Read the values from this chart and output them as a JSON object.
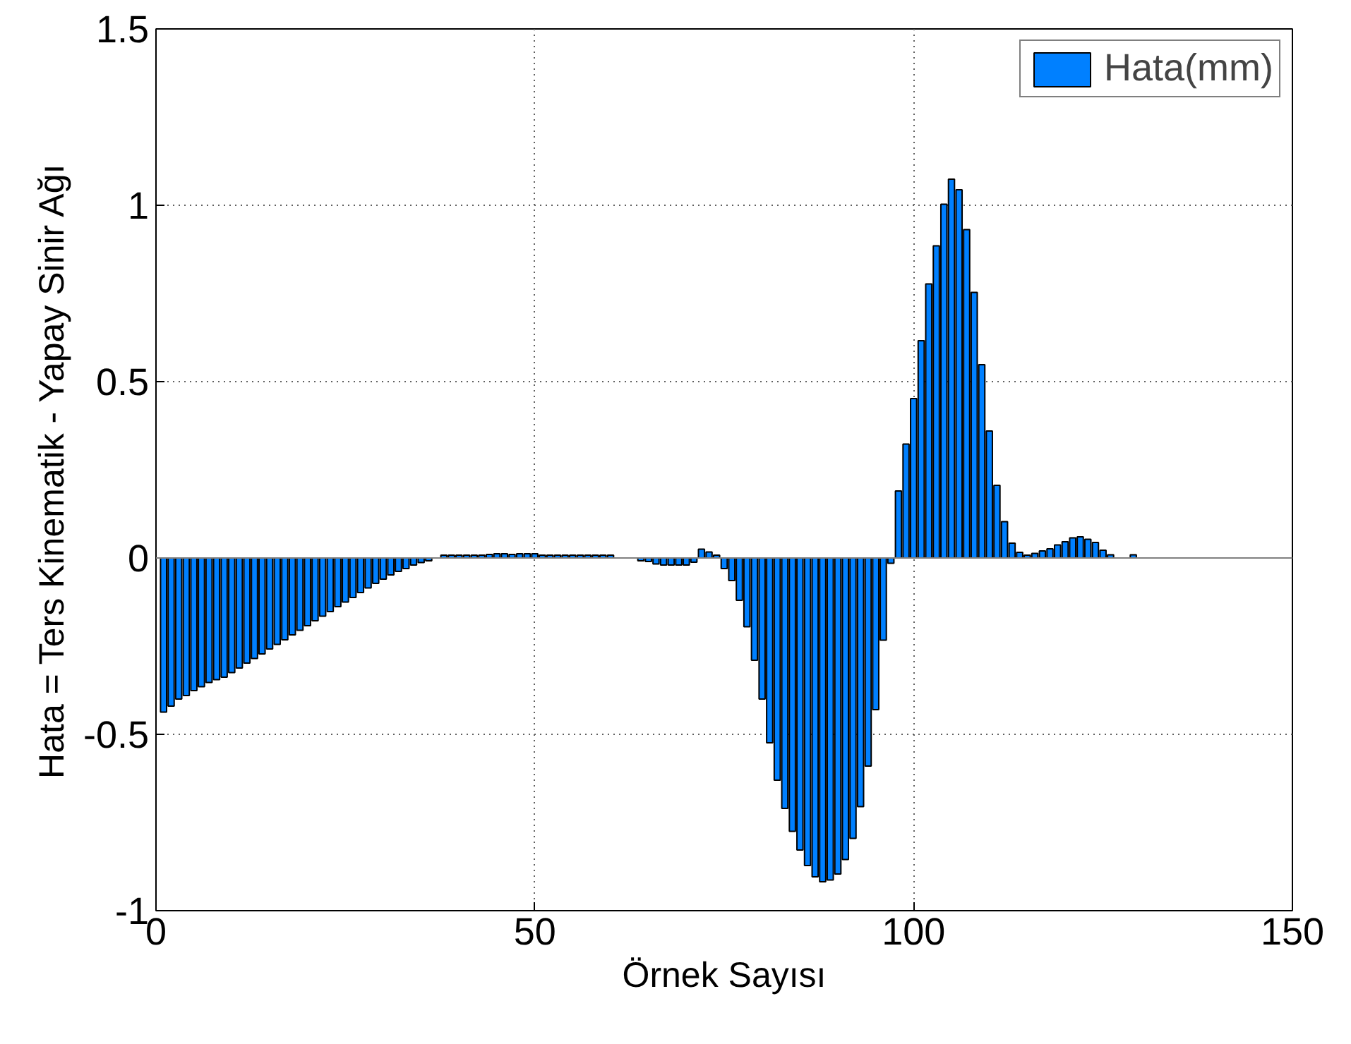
{
  "chart_data": {
    "type": "bar",
    "xlabel": "Örnek Sayısı",
    "ylabel": "Hata = Ters Kinematik - Yapay Sinir Ağı",
    "x": [
      1,
      2,
      3,
      4,
      5,
      6,
      7,
      8,
      9,
      10,
      11,
      12,
      13,
      14,
      15,
      16,
      17,
      18,
      19,
      20,
      21,
      22,
      23,
      24,
      25,
      26,
      27,
      28,
      29,
      30,
      31,
      32,
      33,
      34,
      35,
      36,
      37,
      38,
      39,
      40,
      41,
      42,
      43,
      44,
      45,
      46,
      47,
      48,
      49,
      50,
      51,
      52,
      53,
      54,
      55,
      56,
      57,
      58,
      59,
      60,
      61,
      62,
      63,
      64,
      65,
      66,
      67,
      68,
      69,
      70,
      71,
      72,
      73,
      74,
      75,
      76,
      77,
      78,
      79,
      80,
      81,
      82,
      83,
      84,
      85,
      86,
      87,
      88,
      89,
      90,
      91,
      92,
      93,
      94,
      95,
      96,
      97,
      98,
      99,
      100,
      101,
      102,
      103,
      104,
      105,
      106,
      107,
      108,
      109,
      110,
      111,
      112,
      113,
      114,
      115,
      116,
      117,
      118,
      119,
      120,
      121,
      122,
      123,
      124,
      125,
      126,
      127,
      128,
      129
    ],
    "series": [
      {
        "name": "Hata(mm)",
        "color": "#0080ff",
        "values": [
          -0.437,
          -0.42,
          -0.4,
          -0.39,
          -0.376,
          -0.365,
          -0.353,
          -0.345,
          -0.338,
          -0.325,
          -0.312,
          -0.298,
          -0.285,
          -0.272,
          -0.258,
          -0.245,
          -0.232,
          -0.218,
          -0.205,
          -0.192,
          -0.178,
          -0.165,
          -0.152,
          -0.138,
          -0.125,
          -0.112,
          -0.098,
          -0.085,
          -0.072,
          -0.06,
          -0.048,
          -0.038,
          -0.03,
          -0.02,
          -0.013,
          -0.008,
          null,
          0.008,
          0.008,
          0.008,
          0.008,
          0.008,
          0.008,
          0.01,
          0.012,
          0.012,
          0.01,
          0.012,
          0.012,
          0.012,
          0.008,
          0.008,
          0.008,
          0.008,
          0.008,
          0.008,
          0.008,
          0.008,
          0.008,
          0.008,
          null,
          null,
          null,
          -0.008,
          -0.01,
          -0.017,
          -0.02,
          -0.02,
          -0.02,
          -0.02,
          -0.012,
          0.025,
          0.017,
          0.008,
          -0.03,
          -0.064,
          -0.12,
          -0.195,
          -0.29,
          -0.4,
          -0.524,
          -0.63,
          -0.71,
          -0.775,
          -0.828,
          -0.872,
          -0.904,
          -0.918,
          -0.913,
          -0.896,
          -0.855,
          -0.795,
          -0.705,
          -0.59,
          -0.43,
          -0.233,
          -0.015,
          0.19,
          0.323,
          0.452,
          0.616,
          0.777,
          0.885,
          1.003,
          1.074,
          1.044,
          0.931,
          0.753,
          0.548,
          0.36,
          0.206,
          0.103,
          0.042,
          0.016,
          0.008,
          0.013,
          0.02,
          0.026,
          0.037,
          0.046,
          0.057,
          0.06,
          0.053,
          0.044,
          0.022,
          0.009,
          null,
          null,
          0.009
        ]
      }
    ],
    "xlim": [
      0,
      150
    ],
    "xticks": [
      0,
      50,
      100,
      150
    ],
    "ylim": [
      -1,
      1.5
    ],
    "yticks": [
      -1,
      -0.5,
      0,
      0.5,
      1,
      1.5
    ],
    "grid": true,
    "legend": "top right"
  }
}
